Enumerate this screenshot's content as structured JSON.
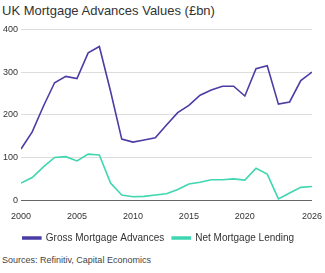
{
  "chart_data": {
    "type": "line",
    "title": "UK Mortgage Advances Values (£bn)",
    "source": "Sources: Refinitiv, Capital Economics",
    "x": [
      2000,
      2001,
      2002,
      2003,
      2004,
      2005,
      2006,
      2007,
      2008,
      2009,
      2010,
      2011,
      2012,
      2013,
      2014,
      2015,
      2016,
      2017,
      2018,
      2019,
      2020,
      2021,
      2022,
      2023,
      2024,
      2025,
      2026
    ],
    "series": [
      {
        "name": "Gross Mortgage Advances",
        "color": "#4b3ca6",
        "values": [
          120,
          160,
          220,
          275,
          290,
          285,
          345,
          360,
          255,
          143,
          136,
          141,
          146,
          176,
          205,
          222,
          246,
          258,
          267,
          267,
          244,
          308,
          315,
          225,
          230,
          280,
          300
        ]
      },
      {
        "name": "Net Mortgage Lending",
        "color": "#3fd6b0",
        "values": [
          40,
          53,
          78,
          100,
          102,
          92,
          108,
          106,
          40,
          12,
          8,
          9,
          12,
          15,
          25,
          38,
          42,
          48,
          48,
          50,
          47,
          75,
          61,
          3,
          17,
          30,
          32
        ]
      }
    ],
    "xlim": [
      2000,
      2026
    ],
    "xticks": [
      2000,
      2005,
      2010,
      2015,
      2020,
      2026
    ],
    "ylim": [
      0,
      400
    ],
    "yticks": [
      0,
      100,
      200,
      300,
      400
    ],
    "grid": true,
    "legend": "bottom"
  }
}
